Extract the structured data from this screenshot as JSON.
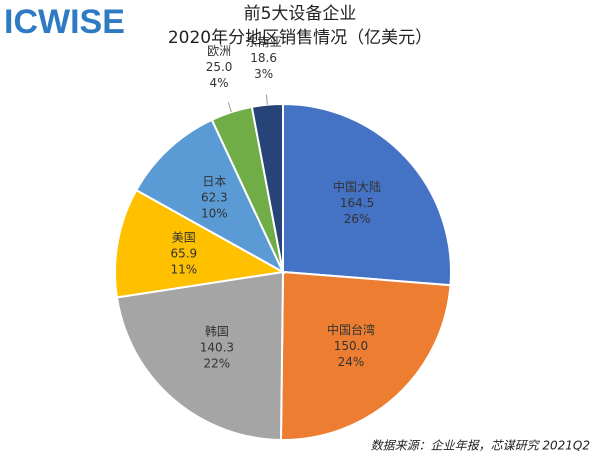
{
  "chart_data": {
    "type": "pie",
    "logo": "ICWISE",
    "title": "前5大设备企业",
    "subtitle": "2020年分地区销售情况（亿美元）",
    "source": "数据来源：企业年报，芯谋研究 2021Q2",
    "categories": [
      "中国大陆",
      "中国台湾",
      "韩国",
      "美国",
      "日本",
      "欧洲",
      "东南亚"
    ],
    "values": [
      164.5,
      150,
      140.3,
      65.9,
      62.3,
      25,
      18.6
    ],
    "value_labels": [
      "164.5",
      "150.0",
      "140.3",
      "65.9",
      "62.3",
      "25.0",
      "18.6"
    ],
    "percents": [
      26,
      24,
      22,
      11,
      10,
      4,
      3
    ],
    "percent_labels": [
      "26%",
      "24%",
      "22%",
      "11%",
      "10%",
      "4%",
      "3%"
    ],
    "colors": [
      "#4472c4",
      "#ed7d31",
      "#a5a5a5",
      "#ffc000",
      "#5b9bd5",
      "#70ad47",
      "#264478"
    ]
  }
}
